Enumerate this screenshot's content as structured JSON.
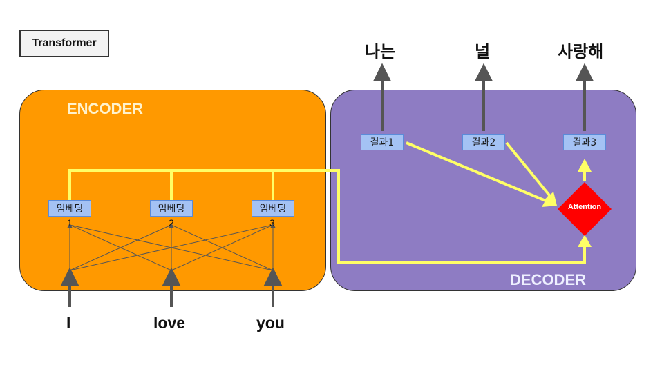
{
  "title": "Transformer",
  "encoder": {
    "label": "ENCODER",
    "embeddings": [
      "임베딩",
      "임베딩",
      "임베딩"
    ],
    "numbers": [
      "1",
      "2",
      "3"
    ],
    "inputs": [
      "I",
      "love",
      "you"
    ]
  },
  "decoder": {
    "label": "DECODER",
    "results": [
      "결과1",
      "결과2",
      "결과3"
    ],
    "outputs": [
      "나는",
      "널",
      "사랑해"
    ],
    "attention": "Attention"
  },
  "colors": {
    "encoder_bg": "#ff9900",
    "decoder_bg": "#8e7cc3",
    "connector": "#ffff66",
    "attention": "#ff0000",
    "embedding_box": "#a4c2f4"
  }
}
